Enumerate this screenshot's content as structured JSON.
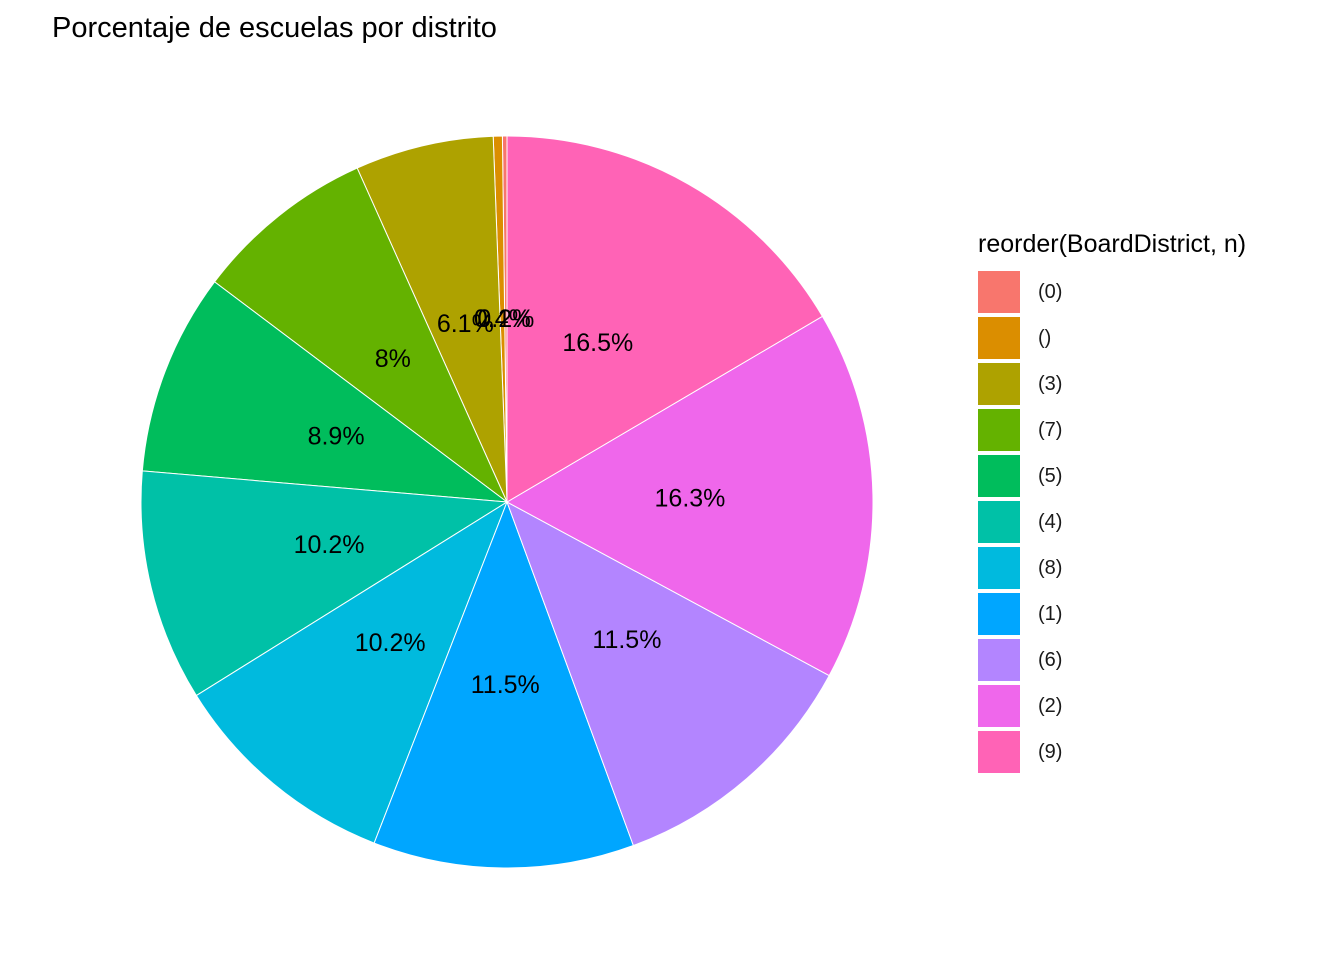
{
  "chart_data": {
    "type": "pie",
    "title": "Porcentaje de escuelas por distrito",
    "legend_title": "reorder(BoardDistrict, n)",
    "legend_position": "right",
    "slices": [
      {
        "category": "(0)",
        "value": 0.2,
        "label": "0.2%",
        "color": "#F8766D"
      },
      {
        "category": "()",
        "value": 0.4,
        "label": "0.4%",
        "color": "#DB8E00"
      },
      {
        "category": "(3)",
        "value": 6.1,
        "label": "6.1%",
        "color": "#AEA200"
      },
      {
        "category": "(7)",
        "value": 8.0,
        "label": "8%",
        "color": "#64B200"
      },
      {
        "category": "(5)",
        "value": 8.9,
        "label": "8.9%",
        "color": "#00BD5C"
      },
      {
        "category": "(4)",
        "value": 10.2,
        "label": "10.2%",
        "color": "#00C1A7"
      },
      {
        "category": "(8)",
        "value": 10.2,
        "label": "10.2%",
        "color": "#00BADE"
      },
      {
        "category": "(1)",
        "value": 11.5,
        "label": "11.5%",
        "color": "#00A6FF"
      },
      {
        "category": "(6)",
        "value": 11.5,
        "label": "11.5%",
        "color": "#B385FF"
      },
      {
        "category": "(2)",
        "value": 16.3,
        "label": "16.3%",
        "color": "#EF67EB"
      },
      {
        "category": "(9)",
        "value": 16.5,
        "label": "16.5%",
        "color": "#FF63B6"
      }
    ]
  }
}
